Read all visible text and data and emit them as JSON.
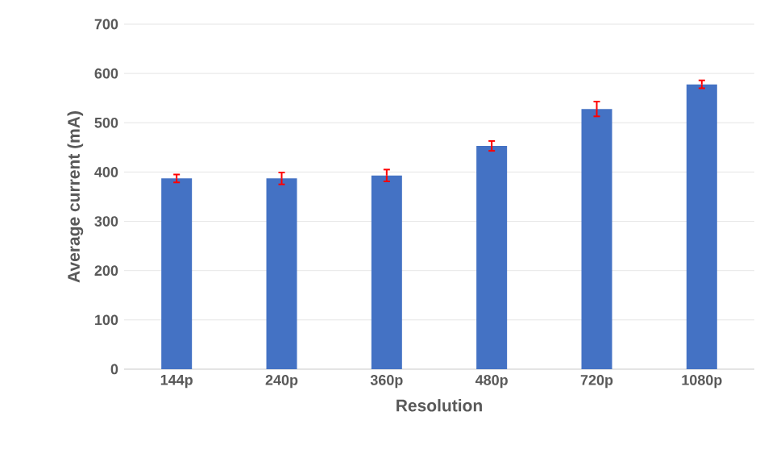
{
  "chart_data": {
    "type": "bar",
    "xlabel": "Resolution",
    "ylabel": "Average current (mA)",
    "categories": [
      "144p",
      "240p",
      "360p",
      "480p",
      "720p",
      "1080p"
    ],
    "values": [
      387,
      387,
      393,
      453,
      528,
      578
    ],
    "errors": [
      8,
      12,
      12,
      10,
      15,
      8
    ],
    "color": "#4472c4",
    "ylim": [
      0,
      700
    ],
    "yticks": [
      0,
      100,
      200,
      300,
      400,
      500,
      600,
      700
    ],
    "grid": "y"
  }
}
